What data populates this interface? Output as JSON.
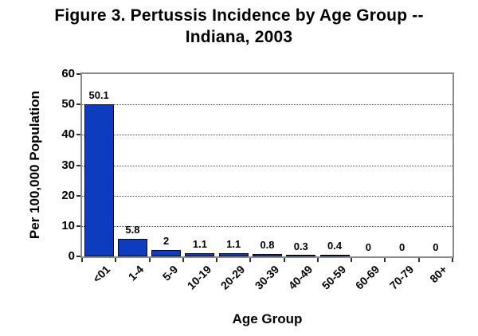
{
  "figure": {
    "title_line1": "Figure 3. Pertussis Incidence by Age Group --",
    "title_line2": "Indiana, 2003"
  },
  "chart_data": {
    "type": "bar",
    "title": "Figure 3. Pertussis Incidence by Age Group -- Indiana, 2003",
    "categories": [
      "<01",
      "1-4",
      "5-9",
      "10-19",
      "20-29",
      "30-39",
      "40-49",
      "50-59",
      "60-69",
      "70-79",
      "80+"
    ],
    "values": [
      50.1,
      5.8,
      2,
      1.1,
      1.1,
      0.8,
      0.3,
      0.4,
      0,
      0,
      0
    ],
    "bar_labels": [
      "50.1",
      "5.8",
      "2",
      "1.1",
      "1.1",
      "0.8",
      "0.3",
      "0.4",
      "0",
      "0",
      "0"
    ],
    "xlabel": "Age Group",
    "ylabel": "Per 100,000 Population",
    "ylim": [
      0,
      60
    ],
    "yticks": [
      0,
      10,
      20,
      30,
      40,
      50,
      60
    ],
    "grid": {
      "horizontal": true,
      "style": "dotted",
      "interval": 10
    },
    "legend": "none",
    "colors": {
      "bar_fill": "#0e3cbf",
      "bar_border": "#000a20",
      "plot_border": "#8c8c8c",
      "grid_color": "#4a4a4a",
      "text": "#000000",
      "background": "#ffffff"
    }
  }
}
